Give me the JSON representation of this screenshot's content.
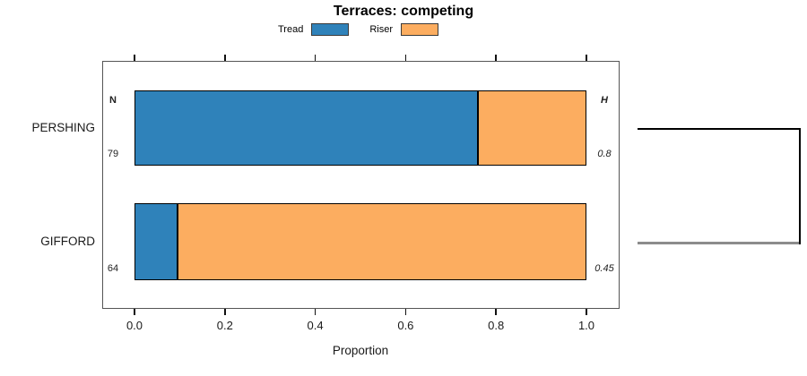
{
  "chart_data": {
    "type": "bar",
    "orientation": "horizontal",
    "stacked": true,
    "title": "Terraces: competing",
    "xlabel": "Proportion",
    "xlim": [
      0,
      1
    ],
    "x_ticks": [
      0.0,
      0.2,
      0.4,
      0.6,
      0.8,
      1.0
    ],
    "x_tick_labels": [
      "0.0",
      "0.2",
      "0.4",
      "0.6",
      "0.8",
      "1.0"
    ],
    "categories": [
      "PERSHING",
      "GIFFORD"
    ],
    "series": [
      {
        "name": "Tread",
        "color": "#2f82ba",
        "values": [
          0.76,
          0.095
        ]
      },
      {
        "name": "Riser",
        "color": "#fcad60",
        "values": [
          0.24,
          0.905
        ]
      }
    ],
    "annotations": {
      "left_header": "N",
      "right_header": "H",
      "n_values": [
        "79",
        "64"
      ],
      "h_values": [
        "0.8",
        "0.45"
      ]
    },
    "legend_position": "top",
    "grid": false,
    "colors": {
      "bar_border": "#000000",
      "box_border": "#555555",
      "bracket_top_line": "#000000",
      "bracket_bottom_line": "#8c8c8c"
    },
    "grouping_bracket": {
      "connects": [
        "PERSHING",
        "GIFFORD"
      ],
      "side": "right"
    }
  }
}
